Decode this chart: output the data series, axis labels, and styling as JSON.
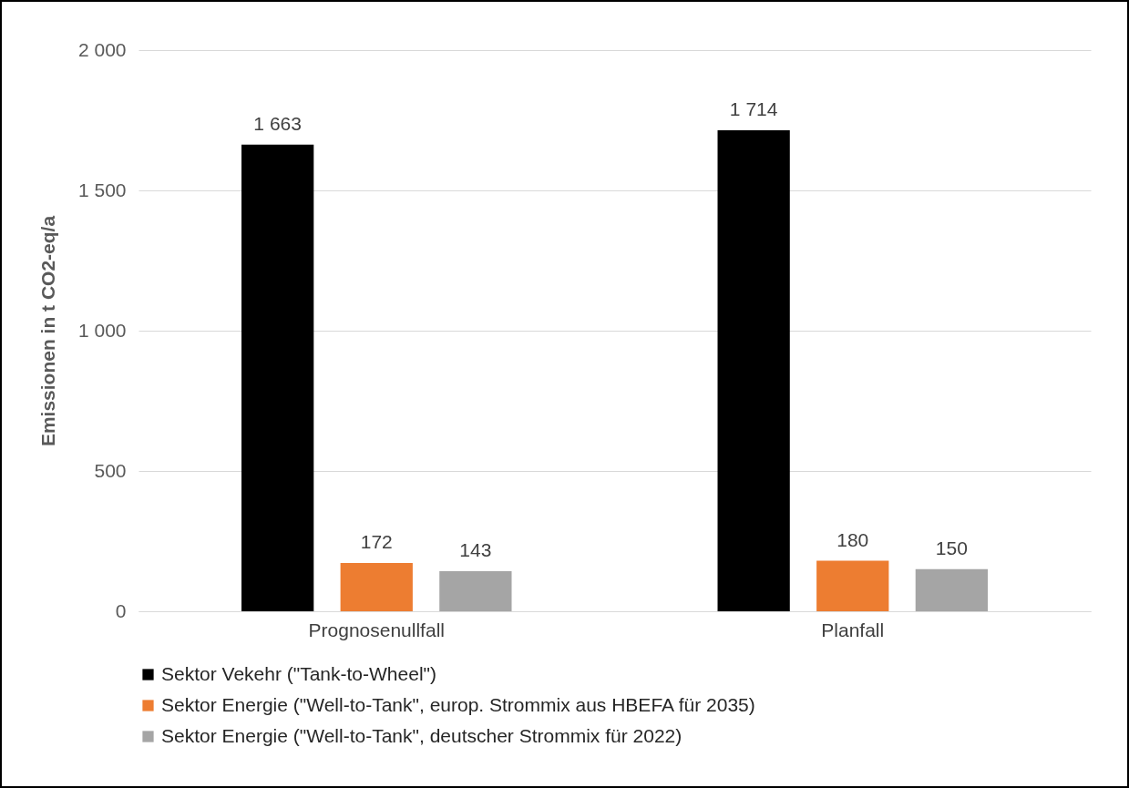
{
  "chart_data": {
    "type": "bar",
    "ylabel": "Emissionen in t CO2-eq/a",
    "categories": [
      "Prognosenullfall",
      "Planfall"
    ],
    "series": [
      {
        "name": "Sektor Vekehr (\"Tank-to-Wheel\")",
        "color": "#000000",
        "values": [
          1663,
          1714
        ],
        "value_labels": [
          "1 663",
          "1 714"
        ]
      },
      {
        "name": "Sektor Energie (\"Well-to-Tank\", europ. Strommix aus HBEFA für 2035)",
        "color": "#ed7d31",
        "values": [
          172,
          180
        ],
        "value_labels": [
          "172",
          "180"
        ]
      },
      {
        "name": "Sektor Energie (\"Well-to-Tank\", deutscher Strommix für 2022)",
        "color": "#a5a5a5",
        "values": [
          143,
          150
        ],
        "value_labels": [
          "143",
          "150"
        ]
      }
    ],
    "ylim": [
      0,
      2000
    ],
    "yticks": [
      0,
      500,
      {
        "value": 1000,
        "label": "1 000"
      },
      {
        "value": 1500,
        "label": "1 500"
      },
      {
        "value": 2000,
        "label": "2 000"
      }
    ],
    "grid": "y",
    "legend": "bottom"
  }
}
